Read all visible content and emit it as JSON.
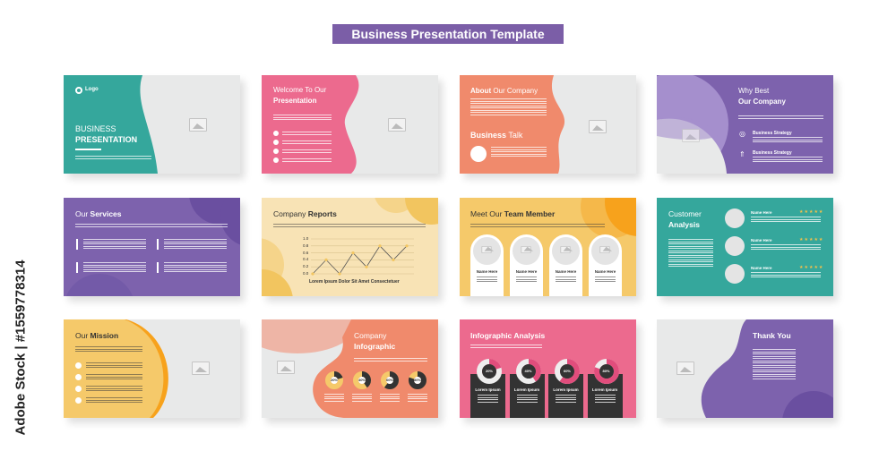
{
  "header": {
    "title": "Business Presentation Template"
  },
  "watermark": {
    "side_text": "Adobe Stock | #1559778314"
  },
  "colors": {
    "teal": "#35a79c",
    "pink": "#ec6a8e",
    "coral": "#f08a6c",
    "purple": "#7d62ad",
    "yellow": "#f5c96a",
    "cream": "#f8e3b5",
    "orange": "#f7a21c",
    "gray": "#e8e9e9",
    "dark": "#333333"
  },
  "slides": {
    "cover": {
      "logo": "Logo",
      "title1": "BUSINESS",
      "title2": "PRESENTATION",
      "icon": "image-placeholder-icon"
    },
    "welcome": {
      "title1": "Welcome To Our",
      "title2": "Presentation"
    },
    "about": {
      "title_bold": "About",
      "title_rest": " Our Company",
      "sub_bold": "Business",
      "sub_rest": " Talk"
    },
    "why": {
      "title1": "Why Best",
      "title2": "Our Company",
      "items": [
        "Business Strategy",
        "Business Strategy"
      ]
    },
    "services": {
      "title_rest": "Our ",
      "title_bold": "Services"
    },
    "reports": {
      "title_rest": "Company ",
      "title_bold": "Reports",
      "chart_data": {
        "type": "line",
        "y_ticks": [
          "1.0",
          "0.8",
          "0.6",
          "0.4",
          "0.2",
          "0.0"
        ],
        "ylim": [
          0,
          1
        ],
        "values": [
          0,
          0.4,
          0,
          0.6,
          0.2,
          0.8,
          0.4,
          0.8
        ],
        "xlabel": "Lorem Ipsum Dolor Sit Amet Consectetuer"
      }
    },
    "team": {
      "title_rest": "Meet Our ",
      "title_bold": "Team Member",
      "members": [
        "Name Here",
        "Name Here",
        "Name Here",
        "Name Here"
      ]
    },
    "customer": {
      "title1": "Customer",
      "title2": "Analysis",
      "rows": [
        {
          "name": "Name Here",
          "stars": 5
        },
        {
          "name": "Name Here",
          "stars": 5
        },
        {
          "name": "Name Here",
          "stars": 5
        }
      ]
    },
    "mission": {
      "title_rest": "Our ",
      "title_bold": "Mission"
    },
    "infographic": {
      "title1": "Company",
      "title2": "Infographic",
      "donuts": [
        {
          "label": "20%",
          "value": 20
        },
        {
          "label": "40%",
          "value": 40
        },
        {
          "label": "60%",
          "value": 60
        },
        {
          "label": "80%",
          "value": 80
        }
      ]
    },
    "analysis": {
      "title": "Infographic Analysis",
      "cards": [
        {
          "label": "20%",
          "value": 20,
          "heading": "Lorem Ipsum"
        },
        {
          "label": "40%",
          "value": 40,
          "heading": "Lorem Ipsum"
        },
        {
          "label": "60%",
          "value": 60,
          "heading": "Lorem Ipsum"
        },
        {
          "label": "80%",
          "value": 80,
          "heading": "Lorem Ipsum"
        }
      ]
    },
    "thanks": {
      "title": "Thank You"
    }
  }
}
